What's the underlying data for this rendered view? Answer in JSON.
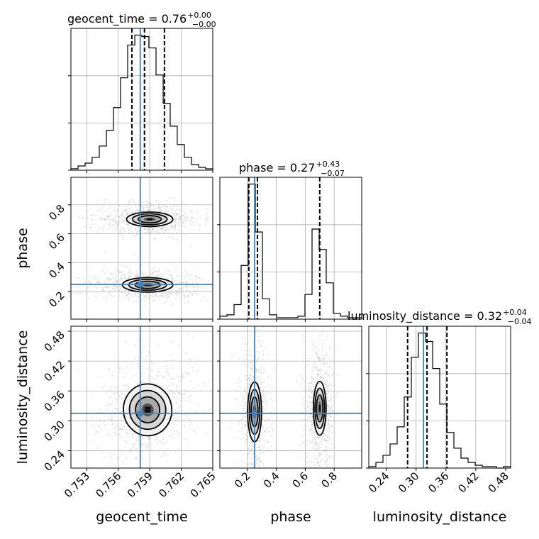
{
  "chart_data": {
    "type": "corner",
    "parameters": [
      "geocent_time",
      "phase",
      "luminosity_distance"
    ],
    "truths": {
      "geocent_time": 0.7581,
      "phase": 0.25,
      "luminosity_distance": 0.315
    },
    "ranges": {
      "geocent_time": [
        0.7515,
        0.765
      ],
      "phase": [
        0.01,
        0.99
      ],
      "luminosity_distance": [
        0.205,
        0.49
      ]
    },
    "ticks": {
      "geocent_time": {
        "values": [
          0.753,
          0.756,
          0.759,
          0.762,
          0.765
        ],
        "labels": [
          "0.753",
          "0.756",
          "0.759",
          "0.762",
          "0.765"
        ]
      },
      "phase": {
        "values": [
          0.2,
          0.4,
          0.6,
          0.8
        ],
        "labels": [
          "0.2",
          "0.4",
          "0.6",
          "0.8"
        ]
      },
      "luminosity_distance": {
        "values": [
          0.24,
          0.3,
          0.36,
          0.42,
          0.48
        ],
        "labels": [
          "0.24",
          "0.30",
          "0.36",
          "0.42",
          "0.48"
        ]
      }
    },
    "titles": [
      {
        "param": "geocent_time",
        "main": "geocent_time = 0.76",
        "sup": "+0.00",
        "sub": "−0.00"
      },
      {
        "param": "phase",
        "main": "phase = 0.27",
        "sup": "+0.43",
        "sub": "−0.07"
      },
      {
        "param": "luminosity_distance",
        "main": "luminosity_distance = 0.32",
        "sup": "+0.04",
        "sub": "−0.04"
      }
    ],
    "axis_labels": {
      "x": [
        "geocent_time",
        "phase",
        "luminosity_distance"
      ],
      "y": [
        "phase",
        "luminosity_distance"
      ]
    },
    "quantiles": {
      "geocent_time": [
        0.7573,
        0.7585,
        0.7604
      ],
      "phase": [
        0.21,
        0.27,
        0.7
      ],
      "luminosity_distance": [
        0.283,
        0.322,
        0.362
      ]
    },
    "histograms": {
      "geocent_time": {
        "bin_edges": [
          0.7515,
          0.75218,
          0.75285,
          0.75352,
          0.7542,
          0.75488,
          0.75555,
          0.75622,
          0.7569,
          0.75758,
          0.75825,
          0.75892,
          0.7596,
          0.76028,
          0.76095,
          0.76162,
          0.7623,
          0.76298,
          0.76365,
          0.76432,
          0.765
        ],
        "counts": [
          1,
          3,
          5,
          9,
          17,
          28,
          44,
          65,
          88,
          95,
          94,
          86,
          67,
          47,
          31,
          18,
          9,
          4,
          2,
          1
        ]
      },
      "phase": {
        "bin_edges": [
          0.01,
          0.059,
          0.108,
          0.157,
          0.206,
          0.255,
          0.304,
          0.353,
          0.402,
          0.451,
          0.5,
          0.549,
          0.598,
          0.647,
          0.696,
          0.745,
          0.794,
          0.843,
          0.892,
          0.941,
          0.99
        ],
        "counts": [
          2,
          3,
          10,
          37,
          93,
          60,
          14,
          3,
          1,
          1,
          1,
          2,
          17,
          62,
          48,
          25,
          4,
          2,
          1,
          1
        ]
      },
      "luminosity_distance": {
        "bin_edges": [
          0.205,
          0.2193,
          0.2335,
          0.2478,
          0.262,
          0.2763,
          0.2905,
          0.3047,
          0.319,
          0.3333,
          0.3475,
          0.3617,
          0.376,
          0.3902,
          0.4045,
          0.4188,
          0.433,
          0.4473,
          0.4615,
          0.4757,
          0.49
        ],
        "counts": [
          1,
          4,
          9,
          17,
          29,
          50,
          78,
          95,
          89,
          70,
          45,
          25,
          14,
          7,
          4,
          2,
          1,
          1,
          0,
          1
        ]
      }
    },
    "contours_2d": {
      "phase_vs_geocent_time": {
        "modes": [
          {
            "center": [
              0.7588,
              0.247
            ],
            "sigma": [
              0.0012,
              0.025
            ],
            "rotation": 0
          },
          {
            "center": [
              0.759,
              0.7
            ],
            "sigma": [
              0.0011,
              0.025
            ],
            "rotation": 0
          }
        ]
      },
      "luminosity_distance_vs_geocent_time": {
        "modes": [
          {
            "center": [
              0.7588,
              0.322
            ],
            "sigma": [
              0.00115,
              0.026
            ],
            "rotation": 0.3
          }
        ]
      },
      "luminosity_distance_vs_phase": {
        "modes": [
          {
            "center": [
              0.25,
              0.318
            ],
            "sigma": [
              0.024,
              0.03
            ],
            "rotation": 0
          },
          {
            "center": [
              0.7,
              0.325
            ],
            "sigma": [
              0.022,
              0.027
            ],
            "rotation": 0
          }
        ]
      }
    },
    "colors": {
      "truth": "#4682b4",
      "hist": "#000000",
      "quantile": "#000000",
      "grid": "#b0b0b0",
      "scatter": "#9a9a9a"
    },
    "grid": true
  }
}
